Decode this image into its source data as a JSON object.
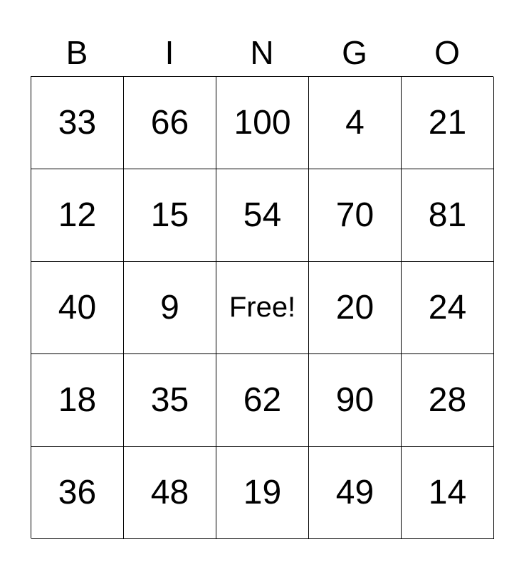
{
  "header": [
    "B",
    "I",
    "N",
    "G",
    "O"
  ],
  "rows": [
    [
      "33",
      "66",
      "100",
      "4",
      "21"
    ],
    [
      "12",
      "15",
      "54",
      "70",
      "81"
    ],
    [
      "40",
      "9",
      "Free!",
      "20",
      "24"
    ],
    [
      "18",
      "35",
      "62",
      "90",
      "28"
    ],
    [
      "36",
      "48",
      "19",
      "49",
      "14"
    ]
  ]
}
